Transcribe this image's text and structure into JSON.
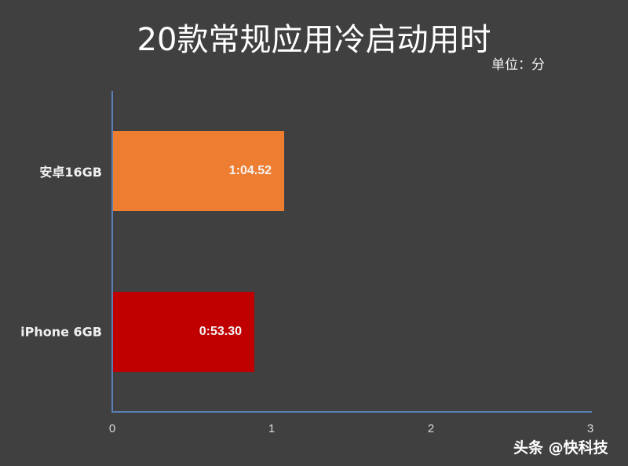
{
  "title": "20款常规应用冷启动用时",
  "unit": "单位：分",
  "categories": [
    {
      "label": "安卓16GB",
      "value_label": "1:04.52",
      "color": "#ed7d31"
    },
    {
      "label": "iPhone 6GB",
      "value_label": "0:53.30",
      "color": "#c00000"
    }
  ],
  "x_ticks": [
    "0",
    "1",
    "2",
    "3"
  ],
  "watermark": "头条 @快科技",
  "chart_data": {
    "type": "bar",
    "orientation": "horizontal",
    "title": "20款常规应用冷启动用时",
    "subtitle": "单位：分",
    "categories": [
      "安卓16GB",
      "iPhone 6GB"
    ],
    "values": [
      1.0753,
      0.8883
    ],
    "value_labels": [
      "1:04.52",
      "0:53.30"
    ],
    "colors": [
      "#ed7d31",
      "#c00000"
    ],
    "xlabel": "",
    "ylabel": "",
    "xlim": [
      0,
      3
    ],
    "x_ticks": [
      0,
      1,
      2,
      3
    ],
    "grid": false,
    "legend": null
  }
}
